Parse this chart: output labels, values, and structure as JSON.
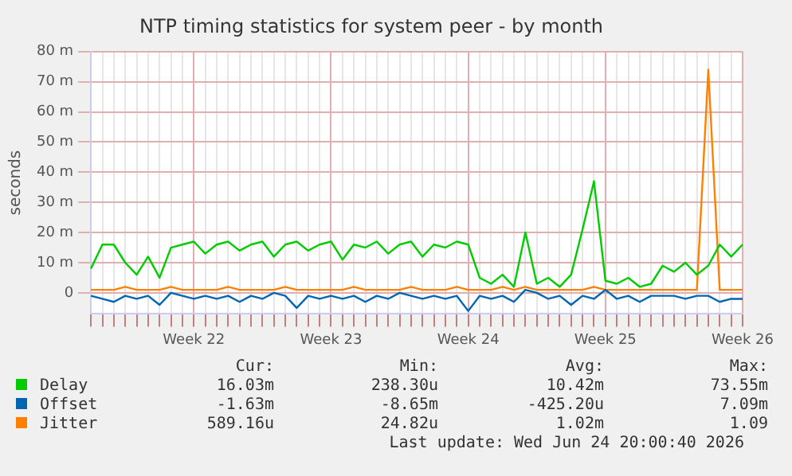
{
  "chart_data": {
    "type": "line",
    "title": "NTP timing statistics for system peer - by month",
    "ylabel": "seconds",
    "categories": [
      null,
      null,
      null,
      null,
      null,
      null,
      null,
      null,
      null,
      "Week 22",
      null,
      null,
      null,
      null,
      null,
      null,
      null,
      null,
      null,
      null,
      null,
      "Week 23",
      null,
      null,
      null,
      null,
      null,
      null,
      null,
      null,
      null,
      null,
      null,
      "Week 24",
      null,
      null,
      null,
      null,
      null,
      null,
      null,
      null,
      null,
      null,
      null,
      "Week 25",
      null,
      null,
      null,
      null,
      null,
      null,
      null,
      null,
      null,
      null,
      null,
      "Week 26"
    ],
    "series": [
      {
        "name": "Delay",
        "color": "#00cc00",
        "values": [
          8,
          16,
          16,
          10,
          6,
          12,
          5,
          15,
          16,
          17,
          13,
          16,
          17,
          14,
          16,
          17,
          12,
          16,
          17,
          14,
          16,
          17,
          11,
          16,
          15,
          17,
          13,
          16,
          17,
          12,
          16,
          15,
          17,
          16,
          5,
          3,
          6,
          2,
          20,
          3,
          5,
          2,
          6,
          21,
          37,
          4,
          3,
          5,
          2,
          3,
          9,
          7,
          10,
          6,
          9,
          16,
          12,
          16
        ]
      },
      {
        "name": "Offset",
        "color": "#0066b3",
        "values": [
          -1,
          -2,
          -3,
          -1,
          -2,
          -1,
          -4,
          0,
          -1,
          -2,
          -1,
          -2,
          -1,
          -3,
          -1,
          -2,
          0,
          -1,
          -5,
          -1,
          -2,
          -1,
          -2,
          -1,
          -3,
          -1,
          -2,
          0,
          -1,
          -2,
          -1,
          -2,
          -1,
          -6,
          -1,
          -2,
          -1,
          -3,
          1,
          0,
          -2,
          -1,
          -4,
          -1,
          -2,
          1,
          -2,
          -1,
          -3,
          -1,
          -1,
          -1,
          -2,
          -1,
          -1,
          -3,
          -2,
          -2
        ]
      },
      {
        "name": "Jitter",
        "color": "#ff8000",
        "values": [
          1,
          1,
          1,
          2,
          1,
          1,
          1,
          2,
          1,
          1,
          1,
          1,
          2,
          1,
          1,
          1,
          1,
          2,
          1,
          1,
          1,
          1,
          1,
          2,
          1,
          1,
          1,
          1,
          2,
          1,
          1,
          1,
          2,
          1,
          1,
          1,
          2,
          1,
          2,
          1,
          1,
          1,
          1,
          1,
          2,
          1,
          1,
          1,
          1,
          1,
          1,
          1,
          1,
          1,
          74,
          1,
          1,
          1
        ]
      }
    ],
    "ylim": [
      -7,
      80
    ],
    "yticks": [
      0,
      {
        "value": 10,
        "label": "10 m"
      },
      {
        "value": 20,
        "label": "20 m"
      },
      {
        "value": 30,
        "label": "30 m"
      },
      {
        "value": 40,
        "label": "40 m"
      },
      {
        "value": 50,
        "label": "50 m"
      },
      {
        "value": 60,
        "label": "60 m"
      },
      {
        "value": 70,
        "label": "70 m"
      },
      {
        "value": 80,
        "label": "80 m"
      }
    ],
    "grid": true,
    "legend": "bottom",
    "marker": "none",
    "line_style": "solid",
    "annotations": [
      "Cur:",
      "Min:",
      "Avg:",
      "Max:",
      "16.03m",
      "238.30u",
      "10.42m",
      "73.55m",
      "-1.63m",
      "-8.65m",
      "-425.20u",
      "7.09m",
      "589.16u",
      "24.82u",
      "1.02m",
      "1.09",
      "Last update: Wed Jun 24 20:00:40 2026"
    ]
  }
}
